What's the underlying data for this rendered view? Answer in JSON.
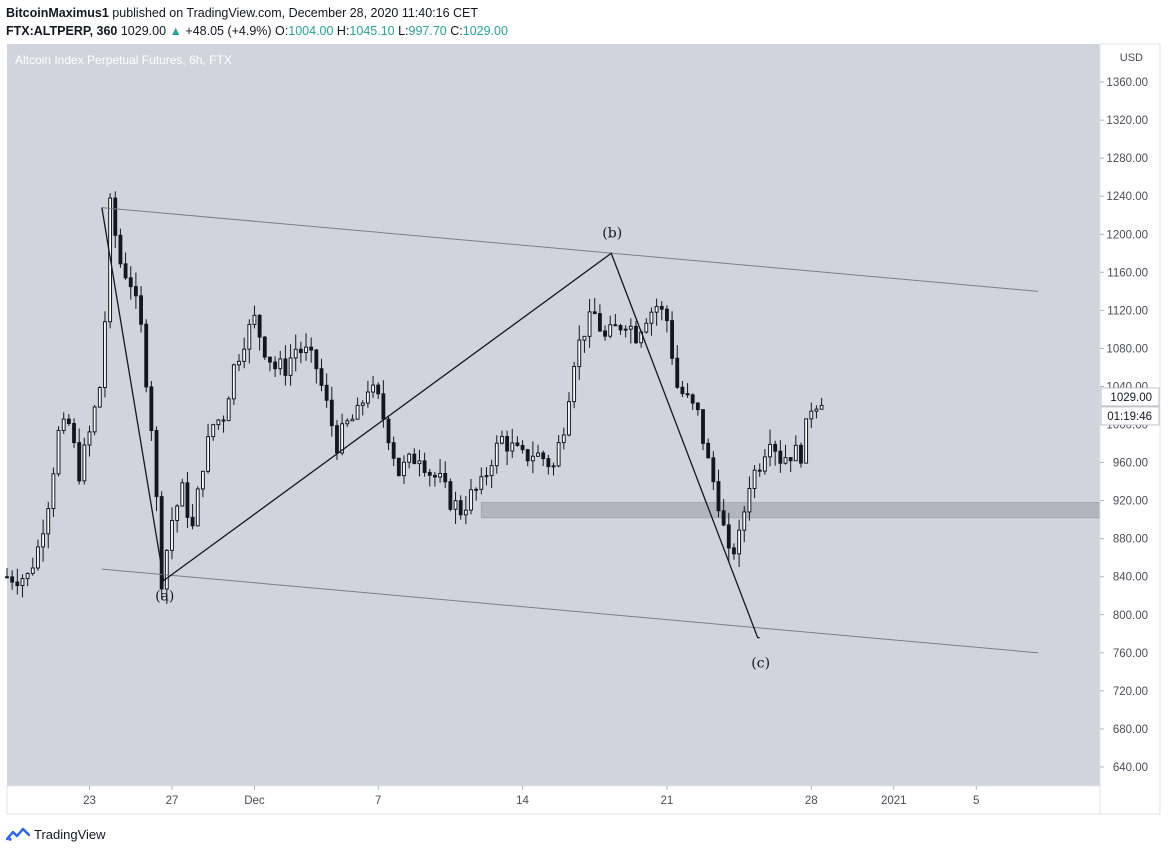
{
  "header": {
    "author": "BitcoinMaximus1",
    "published_text": "published on TradingView.com, December 28, 2020 11:40:16 CET",
    "symbol": "FTX:ALTPERP, 360",
    "last": "1029.00",
    "change": "+48.05 (+4.9%)",
    "o_label": "O:",
    "o_value": "1004.00",
    "h_label": "H:",
    "h_value": "1045.10",
    "l_label": "L:",
    "l_value": "997.70",
    "c_label": "C:",
    "c_value": "1029.00"
  },
  "footer": {
    "brand": "TradingView"
  },
  "colors": {
    "chart_bg": "#d1d4dc",
    "axis_bg": "#ffffff",
    "candle": "#131722",
    "channel_line": "#7b7f8a",
    "support_zone": "#b2b5be",
    "price_label_bg": "#ffffff",
    "accent_teal": "#26a69a"
  },
  "chart_data": {
    "type": "candlestick",
    "title": "Altcoin Index Perpetual Futures, 6h, FTX",
    "currency": "USD",
    "ylim": [
      620,
      1400
    ],
    "y_ticks": [
      640,
      680,
      720,
      760,
      800,
      840,
      880,
      920,
      960,
      1000,
      1040,
      1080,
      1120,
      1160,
      1200,
      1240,
      1280,
      1320,
      1360
    ],
    "x_ticks": [
      {
        "label": "23",
        "day": 23
      },
      {
        "label": "27",
        "day": 27
      },
      {
        "label": "Dec",
        "day": 31
      },
      {
        "label": "7",
        "day": 37
      },
      {
        "label": "14",
        "day": 44
      },
      {
        "label": "21",
        "day": 51
      },
      {
        "label": "28",
        "day": 58
      },
      {
        "label": "2021",
        "day": 62
      },
      {
        "label": "5",
        "day": 66
      }
    ],
    "last_price": "1029.00",
    "countdown": "01:19:46",
    "price_path": [
      [
        20.0,
        840
      ],
      [
        20.5,
        870
      ],
      [
        21.0,
        920
      ],
      [
        21.5,
        990
      ],
      [
        22.0,
        1000
      ],
      [
        22.5,
        950
      ],
      [
        23.0,
        990
      ],
      [
        23.5,
        1040
      ],
      [
        23.75,
        1110
      ],
      [
        24.0,
        1228
      ],
      [
        24.5,
        1170
      ],
      [
        25.0,
        1150
      ],
      [
        25.5,
        1100
      ],
      [
        26.0,
        1000
      ],
      [
        26.5,
        838
      ],
      [
        27.0,
        900
      ],
      [
        27.5,
        930
      ],
      [
        28.0,
        890
      ],
      [
        28.5,
        960
      ],
      [
        29.0,
        1000
      ],
      [
        29.5,
        1010
      ],
      [
        30.0,
        1060
      ],
      [
        30.5,
        1090
      ],
      [
        31.0,
        1110
      ],
      [
        31.5,
        1080
      ],
      [
        32.0,
        1060
      ],
      [
        32.5,
        1060
      ],
      [
        33.0,
        1080
      ],
      [
        33.5,
        1075
      ],
      [
        34.0,
        1060
      ],
      [
        34.5,
        1020
      ],
      [
        35.0,
        980
      ],
      [
        35.5,
        1000
      ],
      [
        36.0,
        1010
      ],
      [
        36.5,
        1040
      ],
      [
        37.0,
        1025
      ],
      [
        37.5,
        990
      ],
      [
        38.0,
        950
      ],
      [
        38.5,
        960
      ],
      [
        39.0,
        970
      ],
      [
        39.5,
        950
      ],
      [
        40.0,
        940
      ],
      [
        40.5,
        920
      ],
      [
        41.0,
        910
      ],
      [
        41.5,
        925
      ],
      [
        42.0,
        935
      ],
      [
        42.5,
        965
      ],
      [
        43.0,
        985
      ],
      [
        43.5,
        975
      ],
      [
        44.0,
        965
      ],
      [
        44.5,
        970
      ],
      [
        45.0,
        965
      ],
      [
        45.5,
        955
      ],
      [
        46.0,
        1000
      ],
      [
        46.5,
        1070
      ],
      [
        47.0,
        1100
      ],
      [
        47.5,
        1115
      ],
      [
        48.0,
        1090
      ],
      [
        48.5,
        1100
      ],
      [
        49.0,
        1110
      ],
      [
        49.5,
        1095
      ],
      [
        50.0,
        1115
      ],
      [
        50.5,
        1125
      ],
      [
        51.0,
        1110
      ],
      [
        51.5,
        1040
      ],
      [
        52.0,
        1025
      ],
      [
        52.5,
        1010
      ],
      [
        53.0,
        960
      ],
      [
        53.5,
        920
      ],
      [
        54.0,
        860
      ],
      [
        54.5,
        880
      ],
      [
        55.0,
        940
      ],
      [
        55.5,
        960
      ],
      [
        56.0,
        990
      ],
      [
        56.5,
        965
      ],
      [
        57.0,
        970
      ],
      [
        57.5,
        970
      ],
      [
        58.0,
        1020
      ],
      [
        58.5,
        1029
      ]
    ],
    "wave_labels": [
      "(a)",
      "(b)",
      "(c)"
    ],
    "pattern_points": [
      {
        "day": 23.6,
        "price": 1228
      },
      {
        "day": 26.6,
        "price": 836
      },
      {
        "day": 48.3,
        "price": 1180
      },
      {
        "day": 55.4,
        "price": 776
      },
      {
        "day": 55.5,
        "price": 776
      }
    ],
    "channel_upper": [
      [
        23.6,
        1228
      ],
      [
        69.0,
        1140
      ]
    ],
    "channel_lower": [
      [
        23.6,
        848
      ],
      [
        69.0,
        760
      ]
    ],
    "support_zone": {
      "day_from": 42.0,
      "day_to": 73.0,
      "price_low": 902,
      "price_high": 918
    },
    "grid": false,
    "legend": "none"
  }
}
